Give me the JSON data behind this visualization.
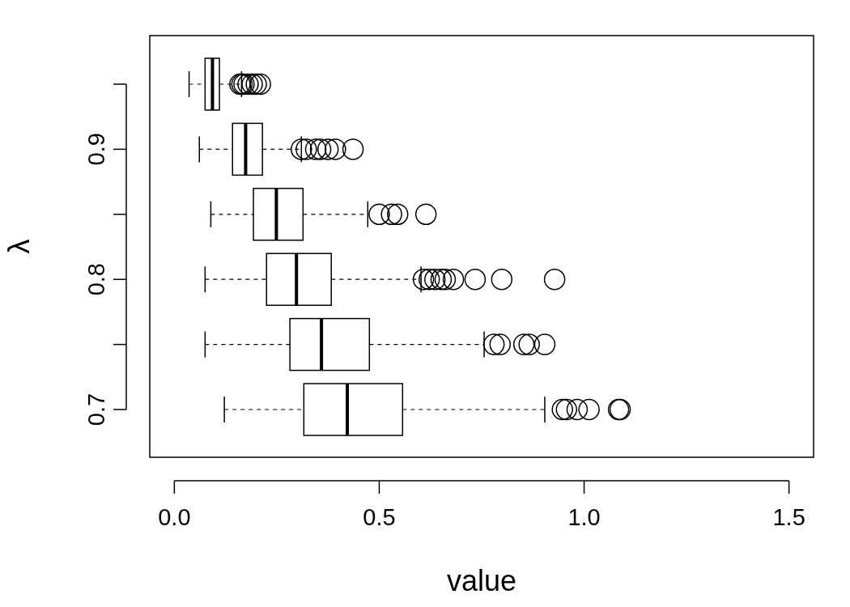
{
  "chart_data": {
    "type": "box",
    "orientation": "horizontal",
    "xlabel": "value",
    "ylabel": "λ",
    "categories": [
      null,
      "0.9",
      null,
      "0.8",
      null,
      "0.7"
    ],
    "boxes": [
      {
        "low": 0.036,
        "q1": 0.075,
        "median": 0.093,
        "q3": 0.11,
        "high": 0.164,
        "outliers": [
          0.16,
          0.165,
          0.17,
          0.18,
          0.19,
          0.2,
          0.21
        ]
      },
      {
        "low": 0.061,
        "q1": 0.142,
        "median": 0.174,
        "q3": 0.215,
        "high": 0.31,
        "outliers": [
          0.31,
          0.322,
          0.345,
          0.357,
          0.375,
          0.393,
          0.436
        ]
      },
      {
        "low": 0.089,
        "q1": 0.193,
        "median": 0.249,
        "q3": 0.314,
        "high": 0.472,
        "outliers": [
          0.5,
          0.53,
          0.545,
          0.614
        ]
      },
      {
        "low": 0.075,
        "q1": 0.225,
        "median": 0.298,
        "q3": 0.383,
        "high": 0.602,
        "outliers": [
          0.608,
          0.622,
          0.636,
          0.651,
          0.661,
          0.681,
          0.734,
          0.799,
          0.928
        ]
      },
      {
        "low": 0.075,
        "q1": 0.282,
        "median": 0.359,
        "q3": 0.476,
        "high": 0.756,
        "outliers": [
          0.78,
          0.795,
          0.853,
          0.866,
          0.904
        ]
      },
      {
        "low": 0.122,
        "q1": 0.316,
        "median": 0.422,
        "q3": 0.557,
        "high": 0.904,
        "outliers": [
          0.947,
          0.957,
          0.983,
          1.012,
          1.084,
          1.088
        ]
      }
    ],
    "xlim": [
      -0.06,
      1.56
    ],
    "xticks": [
      {
        "value": 0,
        "label": "0.0"
      },
      {
        "value": 0.5,
        "label": "0.5"
      },
      {
        "value": 1,
        "label": "1.0"
      },
      {
        "value": 1.5,
        "label": "1.5"
      }
    ],
    "marker": "circle"
  }
}
